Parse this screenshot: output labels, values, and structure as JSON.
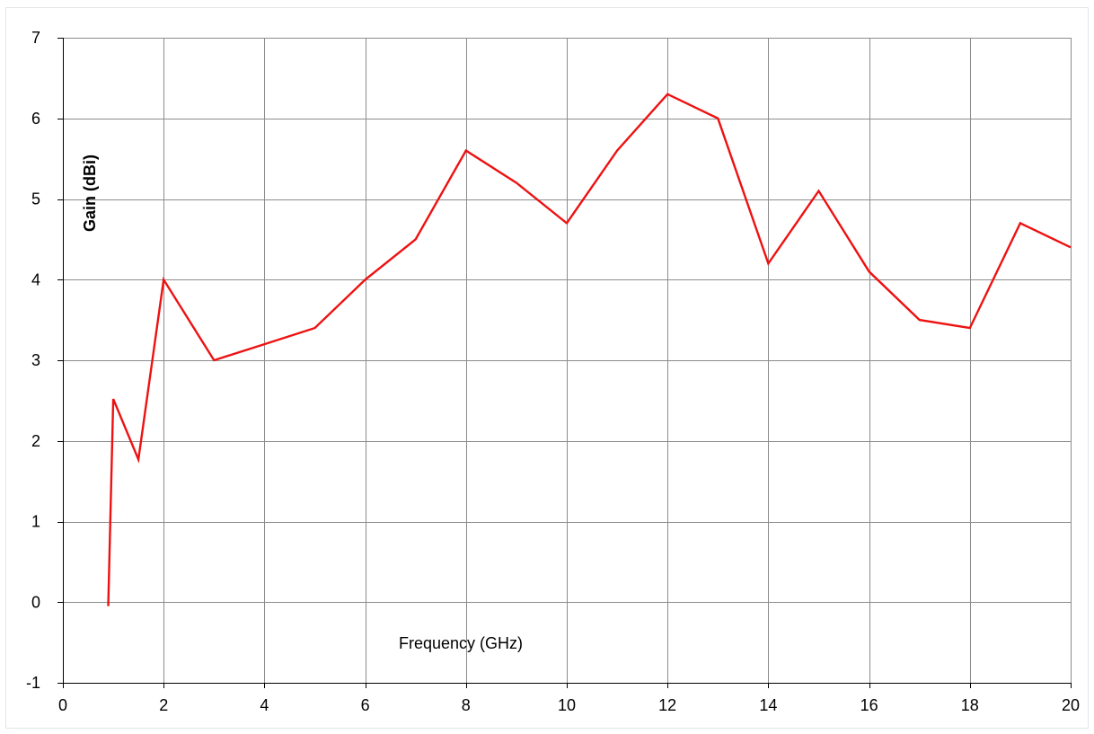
{
  "chart_data": {
    "type": "line",
    "title": "",
    "xlabel": "Frequency (GHz)",
    "ylabel": "Gain (dBi)",
    "xlim": [
      0,
      20
    ],
    "ylim": [
      -1,
      7
    ],
    "xticks": [
      0,
      2,
      4,
      6,
      8,
      10,
      12,
      14,
      16,
      18,
      20
    ],
    "yticks": [
      -1,
      0,
      1,
      2,
      3,
      4,
      5,
      6,
      7
    ],
    "grid": true,
    "legend": "none",
    "series": [
      {
        "color": "#ee1111",
        "x": [
          0.9,
          1.0,
          1.5,
          2,
          3,
          4,
          5,
          6,
          7,
          8,
          9,
          10,
          11,
          12,
          13,
          14,
          15,
          16,
          17,
          18,
          19,
          20
        ],
        "y": [
          -0.05,
          2.52,
          1.77,
          4.0,
          3.0,
          3.2,
          3.4,
          4.0,
          4.5,
          5.6,
          5.2,
          4.7,
          5.6,
          6.3,
          6.0,
          4.2,
          5.1,
          4.1,
          3.5,
          3.4,
          4.7,
          4.4
        ]
      }
    ]
  }
}
